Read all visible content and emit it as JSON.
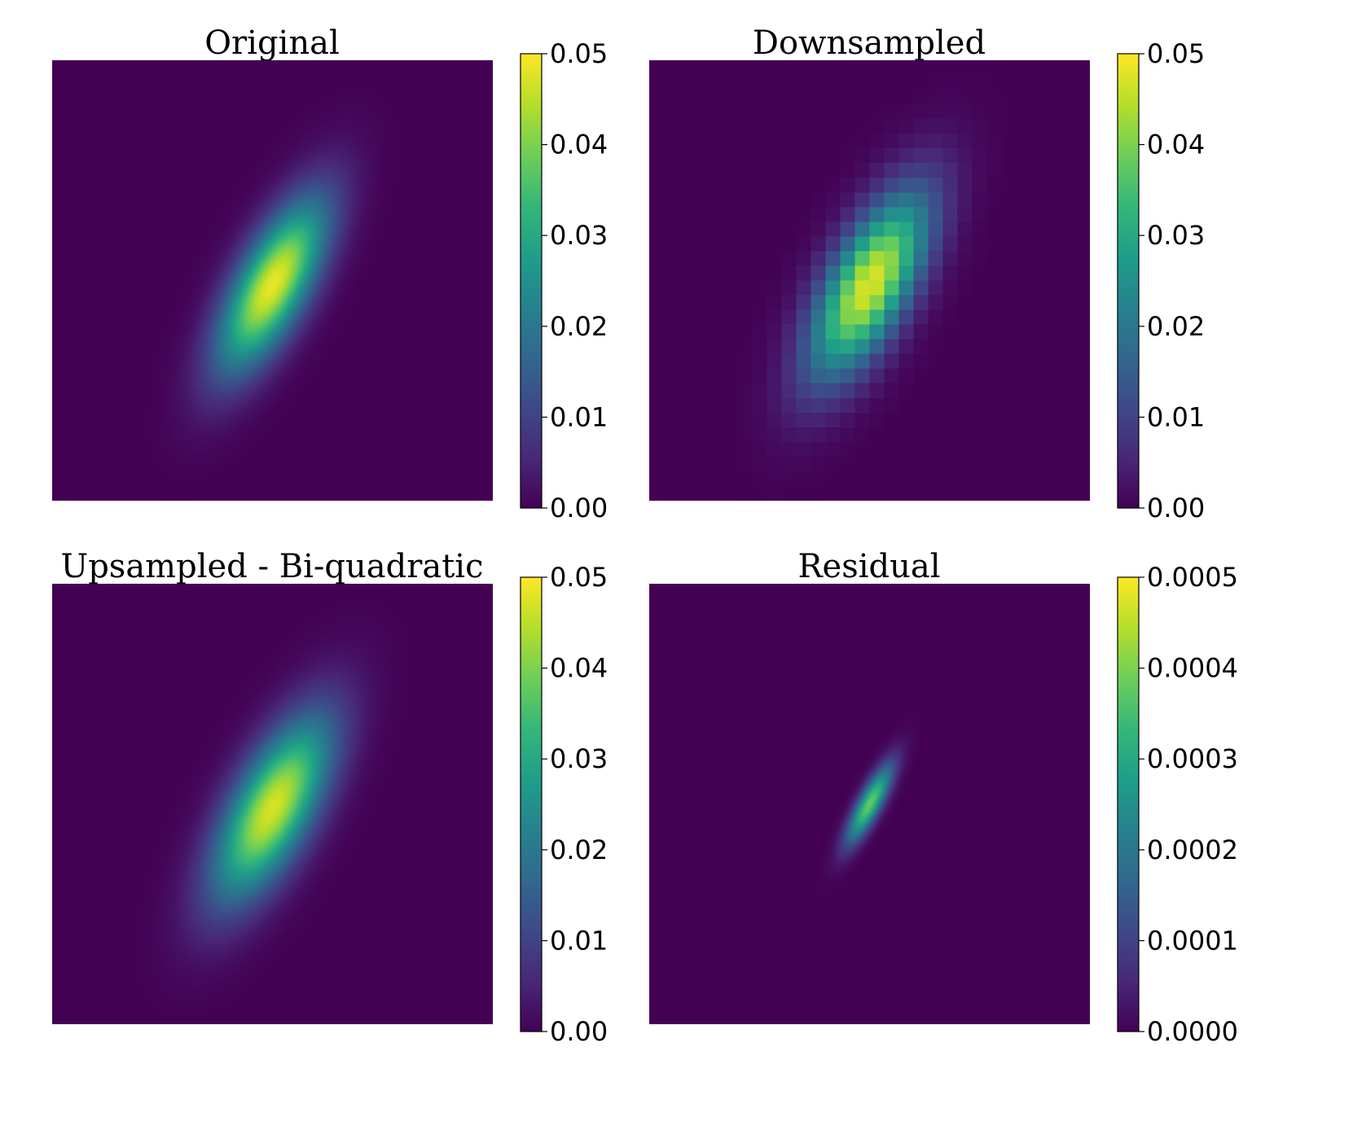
{
  "chart_data": [
    {
      "type": "heatmap",
      "title": "Original",
      "colormap": "viridis",
      "clim": [
        0,
        0.05
      ],
      "colorbar_ticks": [
        "0.00",
        "0.01",
        "0.02",
        "0.03",
        "0.04",
        "0.05"
      ],
      "blob": {
        "center": [
          0.5,
          0.51
        ],
        "sigma_major": 0.15,
        "sigma_minor": 0.055,
        "angle_deg": 62,
        "peak": 0.0485
      },
      "pixelated": false
    },
    {
      "type": "heatmap",
      "title": "Downsampled",
      "colormap": "viridis",
      "clim": [
        0,
        0.05
      ],
      "colorbar_ticks": [
        "0.00",
        "0.01",
        "0.02",
        "0.03",
        "0.04",
        "0.05"
      ],
      "blob": {
        "center": [
          0.5,
          0.51
        ],
        "sigma_major": 0.16,
        "sigma_minor": 0.062,
        "angle_deg": 62,
        "peak": 0.0475
      },
      "pixelated": true,
      "grid_size": 30
    },
    {
      "type": "heatmap",
      "title": "Upsampled - Bi-quadratic",
      "colormap": "viridis",
      "clim": [
        0,
        0.05
      ],
      "colorbar_ticks": [
        "0.00",
        "0.01",
        "0.02",
        "0.03",
        "0.04",
        "0.05"
      ],
      "blob": {
        "center": [
          0.5,
          0.51
        ],
        "sigma_major": 0.16,
        "sigma_minor": 0.062,
        "angle_deg": 62,
        "peak": 0.047
      },
      "pixelated": false
    },
    {
      "type": "heatmap",
      "title": "Residual",
      "colormap": "viridis",
      "clim": [
        0,
        0.0005
      ],
      "colorbar_ticks": [
        "0.0000",
        "0.0001",
        "0.0002",
        "0.0003",
        "0.0004",
        "0.0005"
      ],
      "blob": {
        "center": [
          0.5,
          0.5
        ],
        "sigma_major": 0.07,
        "sigma_minor": 0.018,
        "angle_deg": 62,
        "peak": 0.00038
      },
      "pixelated": false
    }
  ],
  "colormap_stops": [
    "#440154",
    "#482878",
    "#3e4989",
    "#31688e",
    "#26828e",
    "#1f9e89",
    "#35b779",
    "#6ece58",
    "#b5de2b",
    "#fde725"
  ]
}
